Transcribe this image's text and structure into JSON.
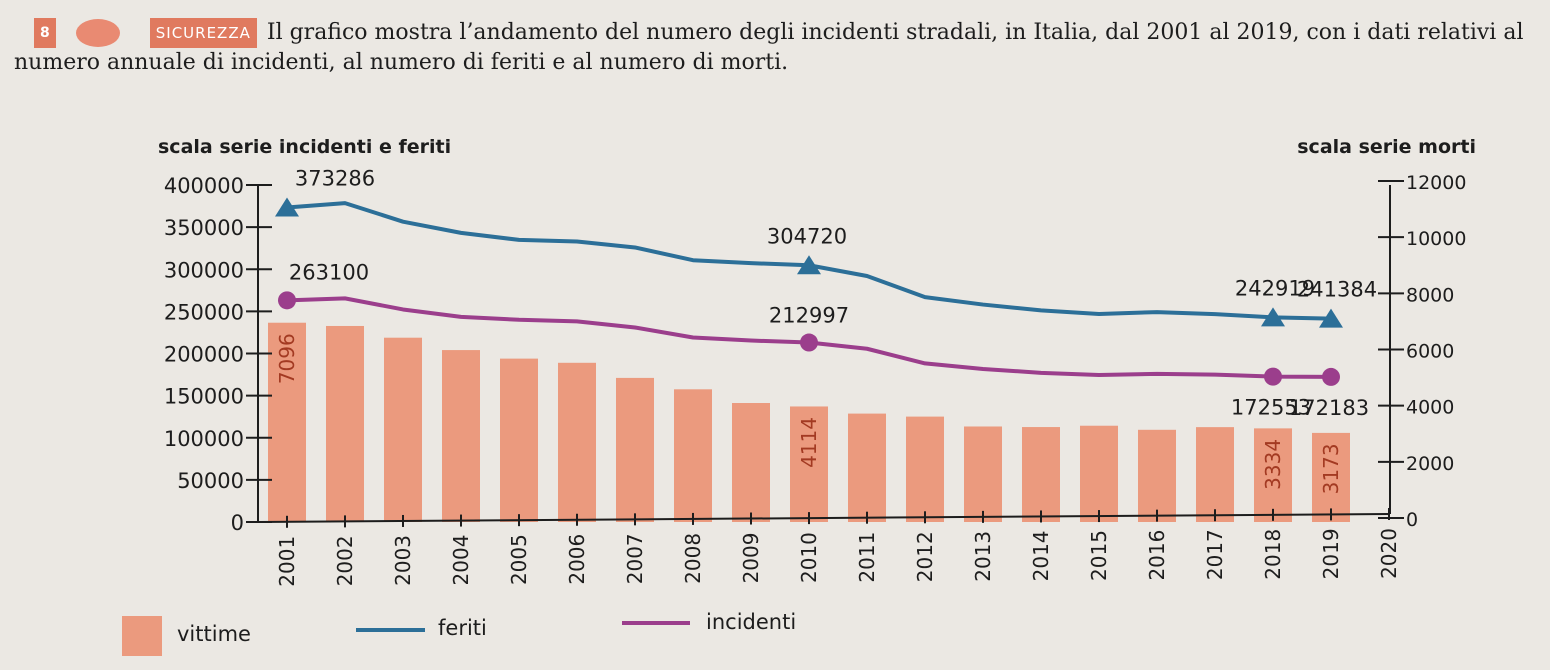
{
  "exercise": {
    "number": "8",
    "topic": "SICUREZZA",
    "text": "Il grafico mostra l’andamento del numero degli incidenti stradali, in Italia, dal 2001 al 2019, con i dati relativi al numero annuale di incidenti, al numero di feriti e al numero di morti."
  },
  "chart_data": {
    "type": "bar+line",
    "left_axis_title": "scala serie incidenti e feriti",
    "right_axis_title": "scala serie morti",
    "left_ticks": [
      "400000",
      "350000",
      "300000",
      "250000",
      "200000",
      "150000",
      "100000",
      "50000",
      "0"
    ],
    "right_ticks": [
      "12000",
      "10000",
      "8000",
      "6000",
      "4000",
      "2000",
      "0"
    ],
    "left_ylim": [
      0,
      400000
    ],
    "right_ylim": [
      0,
      12000
    ],
    "categories": [
      "2001",
      "2002",
      "2003",
      "2004",
      "2005",
      "2006",
      "2007",
      "2008",
      "2009",
      "2010",
      "2011",
      "2012",
      "2013",
      "2014",
      "2015",
      "2016",
      "2017",
      "2018",
      "2019",
      "2020"
    ],
    "series": [
      {
        "name": "vittime",
        "kind": "bar",
        "axis": "right",
        "color": "#eb9a7e",
        "values": [
          7096,
          6980,
          6563,
          6122,
          5818,
          5669,
          5131,
          4725,
          4237,
          4114,
          3860,
          3753,
          3401,
          3381,
          3428,
          3283,
          3378,
          3334,
          3173,
          null
        ]
      },
      {
        "name": "feriti",
        "kind": "line",
        "axis": "left",
        "color": "#2c6f98",
        "marker": "triangle",
        "values": [
          373286,
          378492,
          356475,
          343179,
          334858,
          332955,
          325850,
          310745,
          307258,
          304720,
          292019,
          266864,
          258093,
          251147,
          246920,
          249175,
          246750,
          242919,
          241384,
          null
        ]
      },
      {
        "name": "incidenti",
        "kind": "line",
        "axis": "left",
        "color": "#9b3e8c",
        "marker": "circle",
        "values": [
          263100,
          265402,
          252271,
          243490,
          240011,
          238124,
          230871,
          218963,
          215405,
          212997,
          205638,
          188228,
          181660,
          177031,
          174539,
          175791,
          174933,
          172553,
          172183,
          null
        ]
      }
    ],
    "data_labels": [
      {
        "series": "feriti",
        "category": "2001",
        "text": "373286"
      },
      {
        "series": "feriti",
        "category": "2010",
        "text": "304720"
      },
      {
        "series": "feriti",
        "category": "2018",
        "text": "242919"
      },
      {
        "series": "feriti",
        "category": "2019",
        "text": "241384"
      },
      {
        "series": "incidenti",
        "category": "2001",
        "text": "263100"
      },
      {
        "series": "incidenti",
        "category": "2010",
        "text": "212997"
      },
      {
        "series": "incidenti",
        "category": "2018",
        "text": "172553"
      },
      {
        "series": "incidenti",
        "category": "2019",
        "text": "172183"
      },
      {
        "series": "vittime",
        "category": "2001",
        "text": "7096"
      },
      {
        "series": "vittime",
        "category": "2010",
        "text": "4114"
      },
      {
        "series": "vittime",
        "category": "2018",
        "text": "3334"
      },
      {
        "series": "vittime",
        "category": "2019",
        "text": "3173"
      }
    ],
    "legend": [
      "vittime",
      "feriti",
      "incidenti"
    ],
    "legend_position": "bottom-left"
  }
}
